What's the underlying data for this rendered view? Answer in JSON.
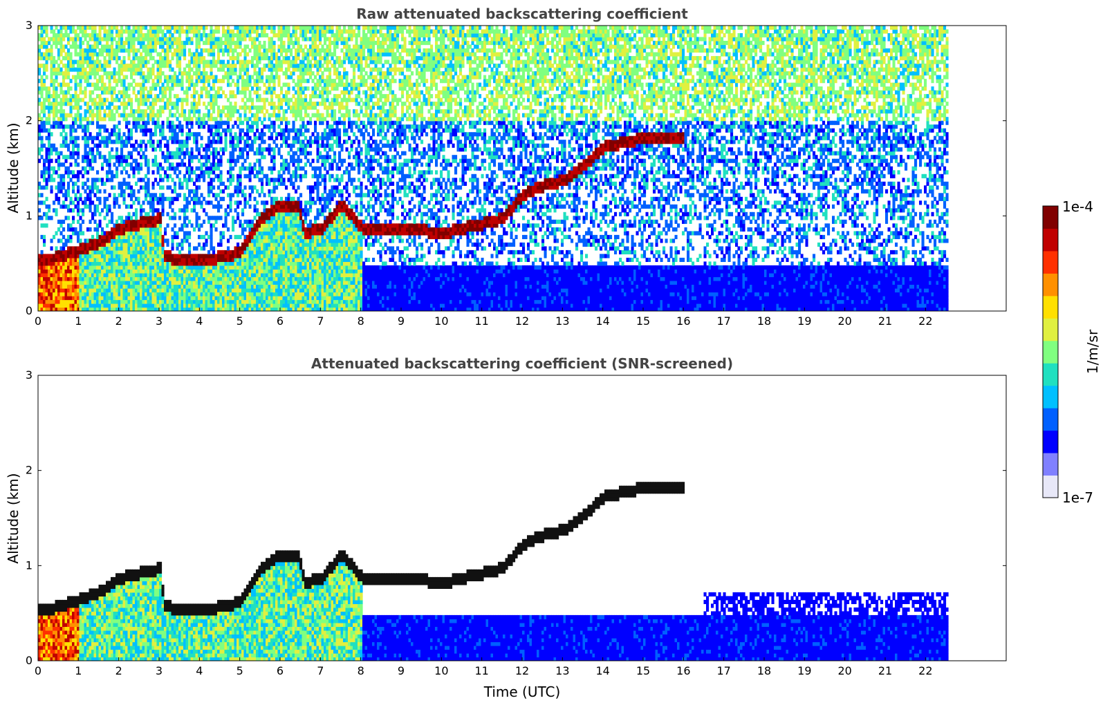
{
  "chart_data": [
    {
      "type": "heatmap",
      "title": "Raw attenuated backscattering coefficient",
      "xlabel": "",
      "ylabel": "Altitude (km)",
      "xlim": [
        0,
        24
      ],
      "ylim": [
        0,
        3
      ],
      "x_ticks": [
        0,
        1,
        2,
        3,
        4,
        5,
        6,
        7,
        8,
        9,
        10,
        11,
        12,
        13,
        14,
        15,
        16,
        17,
        18,
        19,
        20,
        21,
        22
      ],
      "y_ticks": [
        0,
        1,
        2
      ],
      "data_end_hour": 22.5,
      "screened": false,
      "layer": {
        "description_points": [
          [
            0,
            0.5
          ],
          [
            0.5,
            0.55
          ],
          [
            1,
            0.62
          ],
          [
            1.5,
            0.7
          ],
          [
            2,
            0.85
          ],
          [
            2.5,
            0.9
          ],
          [
            3,
            0.95
          ],
          [
            3.1,
            0.55
          ],
          [
            4,
            0.5
          ],
          [
            5,
            0.6
          ],
          [
            5.5,
            0.95
          ],
          [
            6,
            1.1
          ],
          [
            6.4,
            1.1
          ],
          [
            6.6,
            0.8
          ],
          [
            7,
            0.85
          ],
          [
            7.5,
            1.1
          ],
          [
            8,
            0.85
          ],
          [
            9,
            0.85
          ],
          [
            10,
            0.8
          ],
          [
            11,
            0.9
          ],
          [
            11.5,
            0.95
          ],
          [
            12,
            1.2
          ],
          [
            12.5,
            1.3
          ],
          [
            13,
            1.35
          ],
          [
            13.5,
            1.5
          ],
          [
            14,
            1.7
          ],
          [
            15,
            1.8
          ],
          [
            15.5,
            1.8
          ],
          [
            16,
            1.8
          ]
        ]
      }
    },
    {
      "type": "heatmap",
      "title": "Attenuated backscattering coefficient (SNR-screened)",
      "xlabel": "Time (UTC)",
      "ylabel": "Altitude (km)",
      "xlim": [
        0,
        24
      ],
      "ylim": [
        0,
        3
      ],
      "x_ticks": [
        0,
        1,
        2,
        3,
        4,
        5,
        6,
        7,
        8,
        9,
        10,
        11,
        12,
        13,
        14,
        15,
        16,
        17,
        18,
        19,
        20,
        21,
        22
      ],
      "y_ticks": [
        0,
        1,
        2
      ],
      "data_end_hour": 22.5,
      "screened": true
    }
  ],
  "colorbar": {
    "label": "1/m/sr",
    "max_label": "1e-4",
    "min_label": "1e-7",
    "colors": [
      "#e8e8f8",
      "#8080ff",
      "#0000ff",
      "#0060ff",
      "#00c0ff",
      "#20e0c0",
      "#80ff80",
      "#e0f040",
      "#ffe000",
      "#ff9000",
      "#ff3000",
      "#c00000",
      "#800000"
    ]
  }
}
